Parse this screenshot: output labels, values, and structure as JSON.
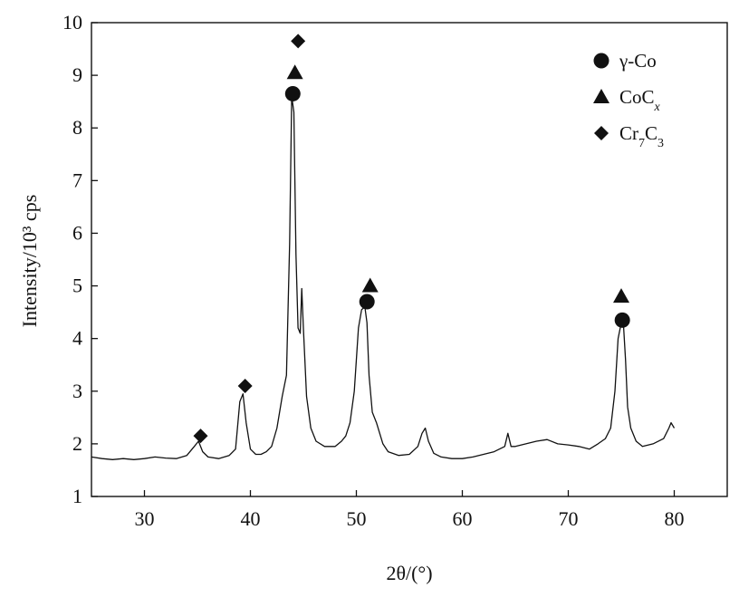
{
  "chart_data": {
    "type": "line",
    "xlabel": "2θ/(°)",
    "ylabel": "Intensity/10³ cps",
    "xlim": [
      25,
      85
    ],
    "ylim": [
      1,
      10
    ],
    "x_ticks": [
      30,
      40,
      50,
      60,
      70,
      80
    ],
    "y_ticks": [
      1,
      2,
      3,
      4,
      5,
      6,
      7,
      8,
      9,
      10
    ],
    "x_tick_labels": [
      "30",
      "40",
      "50",
      "60",
      "70",
      "80"
    ],
    "y_tick_labels": [
      "1",
      "2",
      "3",
      "4",
      "5",
      "6",
      "7",
      "8",
      "9",
      "10"
    ],
    "series": [
      {
        "x": [
          25,
          26,
          27,
          28,
          29,
          30,
          31,
          32,
          33,
          34,
          34.7,
          35.1,
          35.5,
          36,
          37,
          38,
          38.6,
          39.0,
          39.3,
          39.6,
          40.0,
          40.5,
          41,
          41.5,
          42,
          42.5,
          43.0,
          43.4,
          43.7,
          43.9,
          44.1,
          44.3,
          44.5,
          44.7,
          44.85,
          45.0,
          45.3,
          45.7,
          46.2,
          47,
          48,
          48.6,
          49.0,
          49.4,
          49.8,
          50.2,
          50.5,
          50.8,
          51.0,
          51.2,
          51.5,
          51.9,
          52.5,
          53,
          54,
          55,
          55.8,
          56.2,
          56.5,
          56.8,
          57.3,
          58,
          59,
          60,
          61,
          62,
          63,
          64,
          64.3,
          64.6,
          65,
          66,
          67,
          68,
          69,
          70,
          71,
          72,
          72.8,
          73.5,
          74.0,
          74.4,
          74.7,
          75.0,
          75.2,
          75.4,
          75.6,
          75.9,
          76.4,
          77,
          78,
          79,
          79.5,
          79.7,
          80
        ],
        "y": [
          1.75,
          1.72,
          1.7,
          1.72,
          1.7,
          1.72,
          1.75,
          1.73,
          1.72,
          1.78,
          1.95,
          2.05,
          1.85,
          1.75,
          1.72,
          1.78,
          1.9,
          2.8,
          2.95,
          2.4,
          1.9,
          1.8,
          1.8,
          1.85,
          1.95,
          2.3,
          2.9,
          3.3,
          5.8,
          8.6,
          8.3,
          5.6,
          4.2,
          4.1,
          4.95,
          4.2,
          2.9,
          2.3,
          2.05,
          1.95,
          1.95,
          2.05,
          2.15,
          2.4,
          3.0,
          4.2,
          4.55,
          4.6,
          4.3,
          3.3,
          2.6,
          2.4,
          2.0,
          1.85,
          1.78,
          1.8,
          1.95,
          2.2,
          2.3,
          2.05,
          1.82,
          1.75,
          1.72,
          1.72,
          1.75,
          1.8,
          1.85,
          1.95,
          2.2,
          1.95,
          1.95,
          2.0,
          2.05,
          2.08,
          2.0,
          1.98,
          1.95,
          1.9,
          2.0,
          2.1,
          2.3,
          3.0,
          4.0,
          4.3,
          4.3,
          3.6,
          2.7,
          2.3,
          2.05,
          1.95,
          2.0,
          2.1,
          2.3,
          2.4,
          2.3
        ]
      }
    ],
    "markers": [
      {
        "symbol": "circle",
        "x": [
          44.0,
          51.0,
          75.1
        ],
        "y": [
          8.65,
          4.7,
          4.35
        ]
      },
      {
        "symbol": "triangle",
        "x": [
          44.2,
          51.3,
          75.0
        ],
        "y": [
          9.05,
          5.0,
          4.8
        ]
      },
      {
        "symbol": "diamond",
        "x": [
          35.3,
          39.5,
          44.5
        ],
        "y": [
          2.15,
          3.1,
          9.65
        ]
      }
    ],
    "legend": {
      "position": "top-right",
      "entries": [
        {
          "symbol": "circle",
          "label": "γ-Co",
          "base": "γ-Co",
          "subs": []
        },
        {
          "symbol": "triangle",
          "label": "CoCx",
          "base": "CoC",
          "subs": [
            "x"
          ]
        },
        {
          "symbol": "diamond",
          "label": "Cr7C3",
          "base": "Cr",
          "subs": [
            "7",
            "C",
            "3"
          ]
        }
      ]
    },
    "grid": false
  }
}
